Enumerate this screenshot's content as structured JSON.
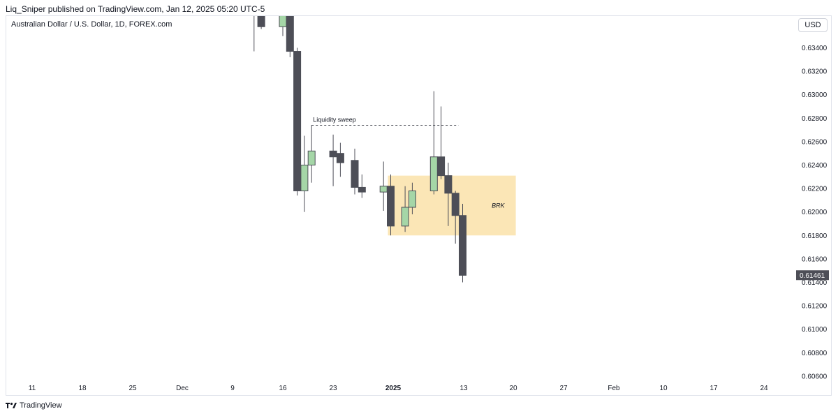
{
  "publisher_line": "Liq_Sniper published on TradingView.com, Jan 12, 2025 05:20 UTC-5",
  "symbol_title": "Australian Dollar / U.S. Dollar, 1D, FOREX.com",
  "currency_button": "USD",
  "footer_brand": "TradingView",
  "colors": {
    "bull_fill": "#a5d6a7",
    "bear_fill": "#4d4e57",
    "wick": "#4d4e57",
    "zone_fill": "#fbe6b6",
    "last_price_bg": "#4d4e57"
  },
  "chart_data": {
    "type": "candlestick",
    "y_range": [
      0.6055,
      0.6363
    ],
    "price_ticks": [
      "0.63400",
      "0.63200",
      "0.63000",
      "0.62800",
      "0.62600",
      "0.62400",
      "0.62200",
      "0.62000",
      "0.61800",
      "0.61600",
      "0.61400",
      "0.61200",
      "0.61000",
      "0.60800",
      "0.60600"
    ],
    "date_ticks": [
      {
        "label": "11",
        "bold": false
      },
      {
        "label": "18",
        "bold": false
      },
      {
        "label": "25",
        "bold": false
      },
      {
        "label": "Dec",
        "bold": false
      },
      {
        "label": "9",
        "bold": false
      },
      {
        "label": "16",
        "bold": false
      },
      {
        "label": "23",
        "bold": false
      },
      {
        "label": "2025",
        "bold": true
      },
      {
        "label": "13",
        "bold": false
      },
      {
        "label": "20",
        "bold": false
      },
      {
        "label": "27",
        "bold": false
      },
      {
        "label": "Feb",
        "bold": false
      },
      {
        "label": "10",
        "bold": false
      },
      {
        "label": "17",
        "bold": false
      },
      {
        "label": "24",
        "bold": false
      }
    ],
    "candles": [
      {
        "date": "2024-12-12",
        "open": 0.6375,
        "high": 0.6385,
        "low": 0.6337,
        "close": 0.637
      },
      {
        "date": "2024-12-13",
        "open": 0.637,
        "high": 0.6378,
        "low": 0.6356,
        "close": 0.6358
      },
      {
        "date": "2024-12-16",
        "open": 0.6358,
        "high": 0.6372,
        "low": 0.635,
        "close": 0.6368
      },
      {
        "date": "2024-12-17",
        "open": 0.6368,
        "high": 0.6373,
        "low": 0.6332,
        "close": 0.6337
      },
      {
        "date": "2024-12-18",
        "open": 0.6337,
        "high": 0.634,
        "low": 0.6214,
        "close": 0.6218
      },
      {
        "date": "2024-12-19",
        "open": 0.6218,
        "high": 0.6265,
        "low": 0.62,
        "close": 0.624
      },
      {
        "date": "2024-12-20",
        "open": 0.624,
        "high": 0.6274,
        "low": 0.6225,
        "close": 0.6252
      },
      {
        "date": "2024-12-23",
        "open": 0.6252,
        "high": 0.6266,
        "low": 0.6222,
        "close": 0.6247
      },
      {
        "date": "2024-12-24",
        "open": 0.625,
        "high": 0.6259,
        "low": 0.623,
        "close": 0.6242
      },
      {
        "date": "2024-12-26",
        "open": 0.6244,
        "high": 0.6254,
        "low": 0.6215,
        "close": 0.6221
      },
      {
        "date": "2024-12-27",
        "open": 0.6221,
        "high": 0.6232,
        "low": 0.6212,
        "close": 0.6217
      },
      {
        "date": "2024-12-30",
        "open": 0.6217,
        "high": 0.6243,
        "low": 0.6201,
        "close": 0.6222
      },
      {
        "date": "2024-12-31",
        "open": 0.6222,
        "high": 0.6232,
        "low": 0.618,
        "close": 0.6188
      },
      {
        "date": "2025-01-02",
        "open": 0.6188,
        "high": 0.6222,
        "low": 0.6183,
        "close": 0.6204
      },
      {
        "date": "2025-01-03",
        "open": 0.6204,
        "high": 0.6225,
        "low": 0.6198,
        "close": 0.6218
      },
      {
        "date": "2025-01-06",
        "open": 0.6218,
        "high": 0.6303,
        "low": 0.6215,
        "close": 0.6247
      },
      {
        "date": "2025-01-07",
        "open": 0.6247,
        "high": 0.629,
        "low": 0.6228,
        "close": 0.6231
      },
      {
        "date": "2025-01-08",
        "open": 0.6231,
        "high": 0.6242,
        "low": 0.6188,
        "close": 0.6216
      },
      {
        "date": "2025-01-09",
        "open": 0.6216,
        "high": 0.6218,
        "low": 0.6173,
        "close": 0.6197
      },
      {
        "date": "2025-01-10",
        "open": 0.6197,
        "high": 0.6207,
        "low": 0.614,
        "close": 0.6146
      }
    ],
    "last_price": "0.61461",
    "annotations": [
      {
        "type": "dashed-line",
        "label": "Liquidity sweep",
        "price": 0.6274,
        "from_date": "2024-12-20",
        "to_date": "2025-01-10"
      },
      {
        "type": "zone",
        "label": "BRK",
        "price_top": 0.6231,
        "price_bottom": 0.618,
        "from_date": "2024-12-31",
        "to_date": "2025-01-17"
      }
    ]
  }
}
